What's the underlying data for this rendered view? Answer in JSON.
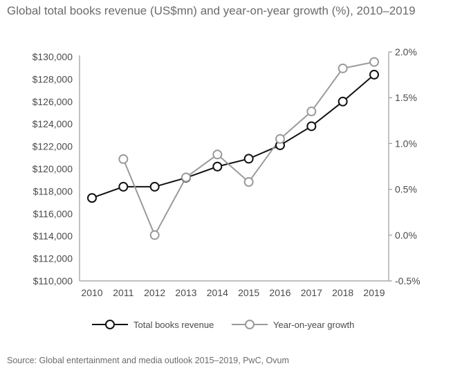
{
  "title": "Global total books revenue (US$mn) and year-on-year growth (%), 2010–2019",
  "source": "Source: Global entertainment and media outlook 2015–2019, PwC, Ovum",
  "colors": {
    "revenue": "#111111",
    "growth": "#9a9a9a",
    "axis": "#9a9a9a"
  },
  "chart_data": {
    "type": "line",
    "title": "Global total books revenue (US$mn) and year-on-year growth (%), 2010–2019",
    "x": [
      "2010",
      "2011",
      "2012",
      "2013",
      "2014",
      "2015",
      "2016",
      "2017",
      "2018",
      "2019"
    ],
    "series": [
      {
        "name": "Total books revenue",
        "axis": "left",
        "values": [
          117400,
          118400,
          118400,
          119200,
          120200,
          120900,
          122100,
          123800,
          126000,
          128400
        ]
      },
      {
        "name": "Year-on-year growth",
        "axis": "right",
        "values": [
          null,
          0.83,
          0.0,
          0.63,
          0.88,
          0.58,
          1.05,
          1.35,
          1.82,
          1.89
        ]
      }
    ],
    "y_left": {
      "min": 110000,
      "max": 130000,
      "step": 2000,
      "tick_labels": [
        "$110,000",
        "$112,000",
        "$114,000",
        "$116,000",
        "$118,000",
        "$120,000",
        "$122,000",
        "$124,000",
        "$126,000",
        "$128,000",
        "$130,000"
      ]
    },
    "y_right": {
      "min": -0.5,
      "max": 2.0,
      "step": 0.5,
      "tick_labels": [
        "-0.5%",
        "0.0%",
        "0.5%",
        "1.0%",
        "1.5%",
        "2.0%"
      ]
    },
    "grid": false,
    "legend": "bottom"
  }
}
